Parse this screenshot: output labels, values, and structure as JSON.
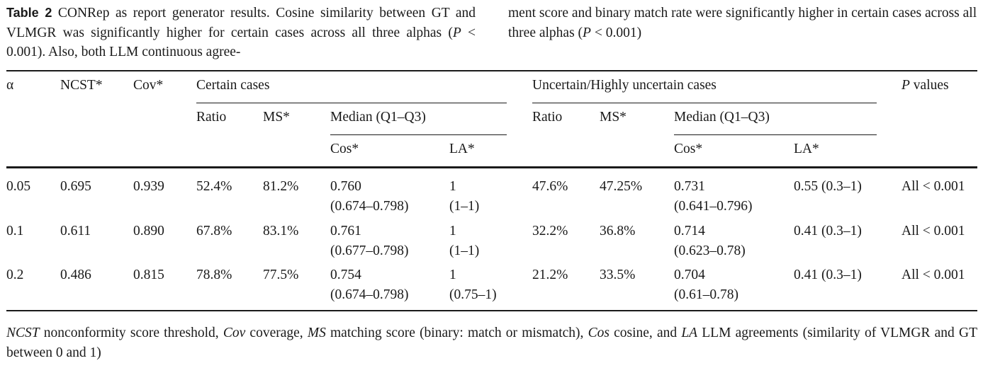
{
  "caption": {
    "label": "Table 2",
    "left_text": "CONRep as report generator results. Cosine similarity between GT and VLMGR was significantly higher for certain cases across all three alphas (",
    "left_p": "P",
    "left_cmp": " < 0.001). Also, both LLM continuous agree-",
    "right_text": "ment score and binary match rate were significantly higher in certain cases across all three alphas (",
    "right_p": "P",
    "right_cmp": " < 0.001)"
  },
  "headers": {
    "alpha": "α",
    "ncst": "NCST*",
    "cov": "Cov*",
    "certain": "Certain cases",
    "uncertain": "Uncertain/Highly uncertain cases",
    "p_values_p": "P",
    "p_values_rest": " values",
    "ratio": "Ratio",
    "ms": "MS*",
    "median": "Median (Q1–Q3)",
    "cos": "Cos*",
    "la": "LA*"
  },
  "rows": [
    {
      "alpha": "0.05",
      "ncst": "0.695",
      "cov": "0.939",
      "c_ratio": "52.4%",
      "c_ms": "81.2%",
      "c_cos1": "0.760",
      "c_cos2": "(0.674–0.798)",
      "c_la1": "1",
      "c_la2": "(1–1)",
      "u_ratio": "47.6%",
      "u_ms": "47.25%",
      "u_cos1": "0.731",
      "u_cos2": "(0.641–0.796)",
      "u_la": "0.55 (0.3–1)",
      "p": "All < 0.001"
    },
    {
      "alpha": "0.1",
      "ncst": "0.611",
      "cov": "0.890",
      "c_ratio": "67.8%",
      "c_ms": "83.1%",
      "c_cos1": "0.761",
      "c_cos2": "(0.677–0.798)",
      "c_la1": "1",
      "c_la2": "(1–1)",
      "u_ratio": "32.2%",
      "u_ms": "36.8%",
      "u_cos1": "0.714",
      "u_cos2": "(0.623–0.78)",
      "u_la": "0.41 (0.3–1)",
      "p": "All < 0.001"
    },
    {
      "alpha": "0.2",
      "ncst": "0.486",
      "cov": "0.815",
      "c_ratio": "78.8%",
      "c_ms": "77.5%",
      "c_cos1": "0.754",
      "c_cos2": "(0.674–0.798)",
      "c_la1": "1",
      "c_la2": "(0.75–1)",
      "u_ratio": "21.2%",
      "u_ms": "33.5%",
      "u_cos1": "0.704",
      "u_cos2": "(0.61–0.78)",
      "u_la": "0.41 (0.3–1)",
      "p": "All < 0.001"
    }
  ],
  "footnote": [
    {
      "abbr": "NCST",
      "def": " nonconformity score threshold, "
    },
    {
      "abbr": "Cov",
      "def": " coverage, "
    },
    {
      "abbr": "MS",
      "def": " matching score (binary: match or mismatch), "
    },
    {
      "abbr": "Cos",
      "def": " cosine, and "
    },
    {
      "abbr": "LA",
      "def": " LLM agreements (similarity of VLMGR and GT between 0 and 1)"
    }
  ]
}
